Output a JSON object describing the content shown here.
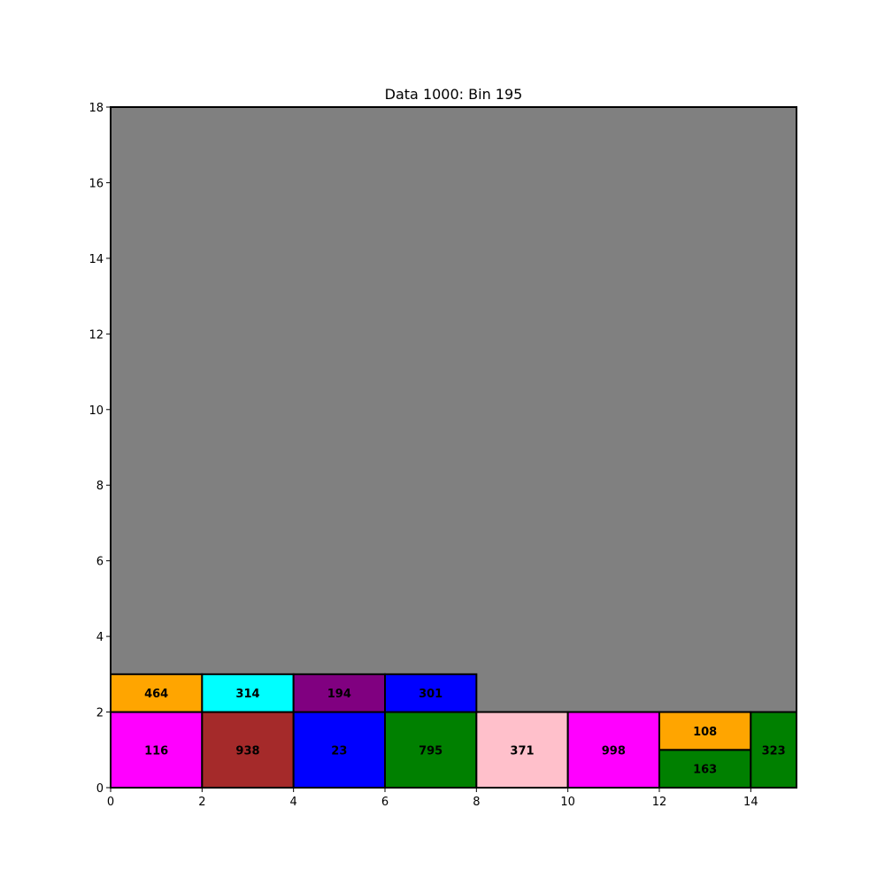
{
  "chart_data": {
    "type": "rectangles",
    "title": "Data 1000: Bin 195",
    "xlabel": "",
    "ylabel": "",
    "xlim": [
      0,
      15
    ],
    "ylim": [
      0,
      18
    ],
    "xticks": [
      0,
      2,
      4,
      6,
      8,
      10,
      12,
      14
    ],
    "yticks": [
      0,
      2,
      4,
      6,
      8,
      10,
      12,
      14,
      16,
      18
    ],
    "grid": false,
    "background_color": "#808080",
    "rects": [
      {
        "label": "116",
        "x": 0,
        "y": 0,
        "w": 2,
        "h": 2,
        "color": "#ff00ff"
      },
      {
        "label": "938",
        "x": 2,
        "y": 0,
        "w": 2,
        "h": 2,
        "color": "#a52a2a"
      },
      {
        "label": "23",
        "x": 4,
        "y": 0,
        "w": 2,
        "h": 2,
        "color": "#0000ff"
      },
      {
        "label": "795",
        "x": 6,
        "y": 0,
        "w": 2,
        "h": 2,
        "color": "#008000"
      },
      {
        "label": "371",
        "x": 8,
        "y": 0,
        "w": 2,
        "h": 2,
        "color": "#ffc0cb"
      },
      {
        "label": "998",
        "x": 10,
        "y": 0,
        "w": 2,
        "h": 2,
        "color": "#ff00ff"
      },
      {
        "label": "163",
        "x": 12,
        "y": 0,
        "w": 2,
        "h": 1,
        "color": "#008000"
      },
      {
        "label": "108",
        "x": 12,
        "y": 1,
        "w": 2,
        "h": 1,
        "color": "#ffa500"
      },
      {
        "label": "323",
        "x": 14,
        "y": 0,
        "w": 1,
        "h": 2,
        "color": "#008000"
      },
      {
        "label": "464",
        "x": 0,
        "y": 2,
        "w": 2,
        "h": 1,
        "color": "#ffa500"
      },
      {
        "label": "314",
        "x": 2,
        "y": 2,
        "w": 2,
        "h": 1,
        "color": "#00ffff"
      },
      {
        "label": "194",
        "x": 4,
        "y": 2,
        "w": 2,
        "h": 1,
        "color": "#800080"
      },
      {
        "label": "301",
        "x": 6,
        "y": 2,
        "w": 2,
        "h": 1,
        "color": "#0000ff"
      }
    ]
  }
}
